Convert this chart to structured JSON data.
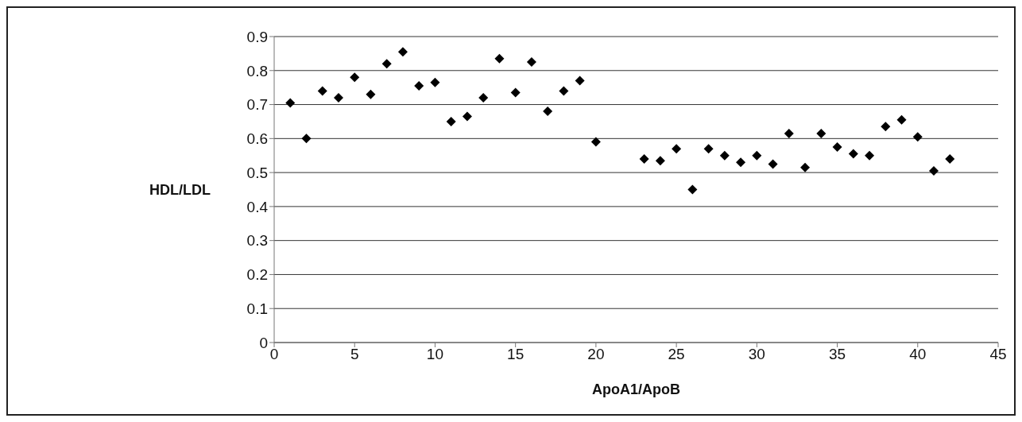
{
  "chart_data": {
    "type": "scatter",
    "xlabel": "ApoA1/ApoB",
    "ylabel": "HDL/LDL",
    "x": [
      1,
      2,
      3,
      4,
      5,
      6,
      7,
      8,
      9,
      10,
      11,
      12,
      13,
      14,
      15,
      16,
      17,
      18,
      19,
      20,
      23,
      24,
      25,
      26,
      27,
      28,
      29,
      30,
      31,
      32,
      33,
      34,
      35,
      36,
      37,
      38,
      39,
      40,
      41,
      42
    ],
    "values": [
      0.705,
      0.6,
      0.74,
      0.72,
      0.78,
      0.73,
      0.82,
      0.855,
      0.755,
      0.765,
      0.65,
      0.665,
      0.72,
      0.835,
      0.735,
      0.825,
      0.68,
      0.74,
      0.77,
      0.59,
      0.54,
      0.535,
      0.57,
      0.45,
      0.57,
      0.55,
      0.53,
      0.55,
      0.525,
      0.615,
      0.515,
      0.615,
      0.575,
      0.555,
      0.55,
      0.635,
      0.655,
      0.605,
      0.505,
      0.54
    ],
    "color": "#000000",
    "marker": "diamond",
    "xlim": [
      0,
      45
    ],
    "xticks": [
      0,
      5,
      10,
      15,
      20,
      25,
      30,
      35,
      40,
      45
    ],
    "ylim": [
      0,
      0.9
    ],
    "yticks": [
      0,
      0.1,
      0.2,
      0.3,
      0.4,
      0.5,
      0.6,
      0.7,
      0.8,
      0.9
    ],
    "grid": "y"
  }
}
